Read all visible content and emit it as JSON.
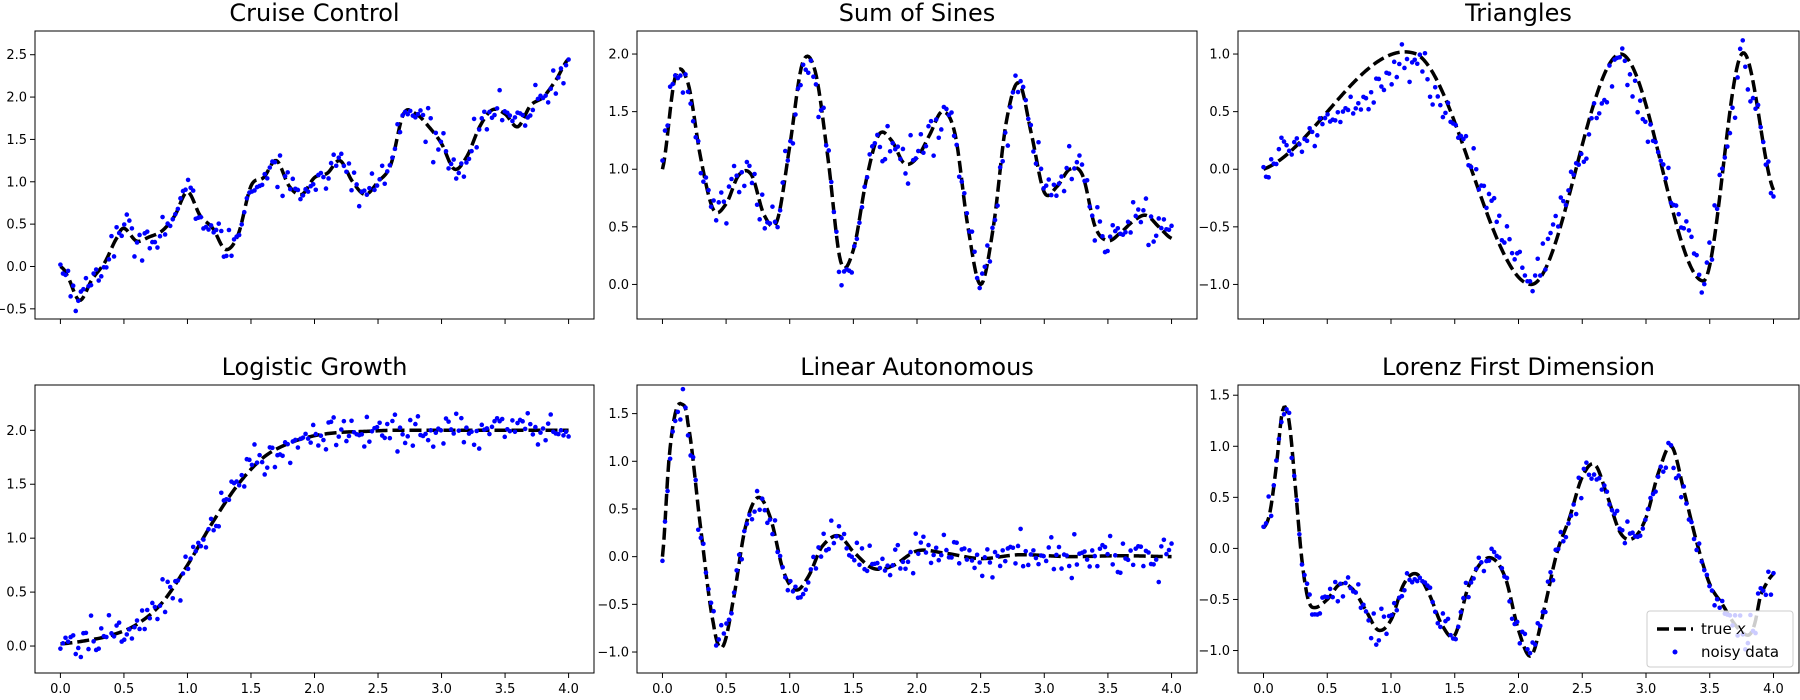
{
  "chart_data": [
    {
      "type": "line",
      "title": "Cruise Control",
      "xlim": [
        -0.2,
        4.2
      ],
      "ylim": [
        -0.62,
        2.78
      ],
      "xticks": [
        0.0,
        0.5,
        1.0,
        1.5,
        2.0,
        2.5,
        3.0,
        3.5,
        4.0
      ],
      "xtick_labels_visible": false,
      "yticks": [
        -0.5,
        0.0,
        0.5,
        1.0,
        1.5,
        2.0,
        2.5
      ],
      "ytick_labels": [
        "−0.5",
        "0.0",
        "0.5",
        "1.0",
        "1.5",
        "2.0",
        "2.5"
      ],
      "noise_sd": 0.1,
      "series": [
        {
          "name": "true x",
          "style": "dashed",
          "color": "#000000",
          "x": [
            0.0,
            0.05,
            0.15,
            0.25,
            0.35,
            0.45,
            0.5,
            0.6,
            0.7,
            0.8,
            0.9,
            1.0,
            1.1,
            1.2,
            1.3,
            1.4,
            1.5,
            1.6,
            1.7,
            1.8,
            1.9,
            2.0,
            2.1,
            2.2,
            2.3,
            2.4,
            2.5,
            2.6,
            2.7,
            2.8,
            2.9,
            3.0,
            3.1,
            3.2,
            3.3,
            3.4,
            3.5,
            3.6,
            3.7,
            3.8,
            3.9,
            4.0
          ],
          "y": [
            0.0,
            -0.1,
            -0.4,
            -0.15,
            0.05,
            0.35,
            0.45,
            0.3,
            0.35,
            0.42,
            0.6,
            0.88,
            0.6,
            0.45,
            0.2,
            0.38,
            0.95,
            1.05,
            1.25,
            0.95,
            0.85,
            1.05,
            1.1,
            1.25,
            1.0,
            0.85,
            1.0,
            1.2,
            1.8,
            1.8,
            1.65,
            1.45,
            1.15,
            1.3,
            1.65,
            1.85,
            1.8,
            1.65,
            1.9,
            2.0,
            2.2,
            2.45
          ]
        },
        {
          "name": "noisy data",
          "style": "markers",
          "color": "#0000ff",
          "n_points": 200
        }
      ]
    },
    {
      "type": "line",
      "title": "Sum of Sines",
      "xlim": [
        -0.2,
        4.2
      ],
      "ylim": [
        -0.3,
        2.2
      ],
      "xticks": [
        0.0,
        0.5,
        1.0,
        1.5,
        2.0,
        2.5,
        3.0,
        3.5,
        4.0
      ],
      "xtick_labels_visible": false,
      "yticks": [
        0.0,
        0.5,
        1.0,
        1.5,
        2.0
      ],
      "ytick_labels": [
        "0.0",
        "0.5",
        "1.0",
        "1.5",
        "2.0"
      ],
      "noise_sd": 0.1,
      "series": [
        {
          "name": "true x",
          "style": "dashed",
          "color": "#000000",
          "x": [
            0.0,
            0.1,
            0.2,
            0.3,
            0.4,
            0.5,
            0.6,
            0.7,
            0.8,
            0.9,
            1.0,
            1.1,
            1.2,
            1.3,
            1.4,
            1.5,
            1.6,
            1.7,
            1.8,
            1.9,
            2.0,
            2.1,
            2.2,
            2.3,
            2.4,
            2.5,
            2.6,
            2.7,
            2.8,
            2.9,
            3.0,
            3.1,
            3.2,
            3.3,
            3.4,
            3.5,
            3.6,
            3.7,
            3.8,
            3.9,
            4.0
          ],
          "y": [
            1.0,
            1.8,
            1.75,
            1.1,
            0.65,
            0.7,
            0.95,
            0.95,
            0.6,
            0.55,
            1.2,
            1.92,
            1.85,
            1.1,
            0.2,
            0.3,
            0.9,
            1.3,
            1.25,
            1.05,
            1.1,
            1.3,
            1.5,
            1.3,
            0.5,
            0.0,
            0.5,
            1.4,
            1.75,
            1.3,
            0.8,
            0.85,
            1.0,
            0.95,
            0.5,
            0.38,
            0.45,
            0.55,
            0.6,
            0.5,
            0.4
          ]
        },
        {
          "name": "noisy data",
          "style": "markers",
          "color": "#0000ff",
          "n_points": 200
        }
      ]
    },
    {
      "type": "line",
      "title": "Triangles",
      "xlim": [
        -0.2,
        4.2
      ],
      "ylim": [
        -1.3,
        1.2
      ],
      "xticks": [
        0.0,
        0.5,
        1.0,
        1.5,
        2.0,
        2.5,
        3.0,
        3.5,
        4.0
      ],
      "xtick_labels_visible": false,
      "yticks": [
        -1.0,
        -0.5,
        0.0,
        0.5,
        1.0
      ],
      "ytick_labels": [
        "−1.0",
        "−0.5",
        "0.0",
        "0.5",
        "1.0"
      ],
      "noise_sd": 0.08,
      "series": [
        {
          "name": "true x",
          "style": "dashed",
          "color": "#000000",
          "x": [
            0.0,
            1.2,
            2.1,
            2.8,
            3.45,
            3.75,
            4.0
          ],
          "y": [
            0.0,
            1.0,
            -1.0,
            1.0,
            -0.97,
            1.0,
            -0.18
          ]
        },
        {
          "name": "noisy data",
          "style": "markers",
          "color": "#0000ff",
          "n_points": 200
        }
      ]
    },
    {
      "type": "line",
      "title": "Logistic Growth",
      "xlim": [
        -0.2,
        4.2
      ],
      "ylim": [
        -0.25,
        2.42
      ],
      "xticks": [
        0.0,
        0.5,
        1.0,
        1.5,
        2.0,
        2.5,
        3.0,
        3.5,
        4.0
      ],
      "xtick_labels": [
        "0.0",
        "0.5",
        "1.0",
        "1.5",
        "2.0",
        "2.5",
        "3.0",
        "3.5",
        "4.0"
      ],
      "xtick_labels_visible": true,
      "yticks": [
        0.0,
        0.5,
        1.0,
        1.5,
        2.0
      ],
      "ytick_labels": [
        "0.0",
        "0.5",
        "1.0",
        "1.5",
        "2.0"
      ],
      "noise_sd": 0.09,
      "series": [
        {
          "name": "true x",
          "style": "dashed",
          "color": "#000000",
          "x": [
            0.0,
            0.2,
            0.4,
            0.6,
            0.8,
            1.0,
            1.2,
            1.4,
            1.6,
            1.8,
            2.0,
            2.2,
            2.4,
            2.6,
            2.8,
            3.0,
            3.5,
            4.0
          ],
          "y": [
            0.02,
            0.05,
            0.1,
            0.2,
            0.4,
            0.75,
            1.15,
            1.5,
            1.75,
            1.88,
            1.95,
            1.98,
            1.99,
            2.0,
            2.0,
            2.0,
            2.0,
            2.0
          ]
        },
        {
          "name": "noisy data",
          "style": "markers",
          "color": "#0000ff",
          "n_points": 200
        }
      ]
    },
    {
      "type": "line",
      "title": "Linear Autonomous",
      "xlim": [
        -0.2,
        4.2
      ],
      "ylim": [
        -1.22,
        1.8
      ],
      "xticks": [
        0.0,
        0.5,
        1.0,
        1.5,
        2.0,
        2.5,
        3.0,
        3.5,
        4.0
      ],
      "xtick_labels": [
        "0.0",
        "0.5",
        "1.0",
        "1.5",
        "2.0",
        "2.5",
        "3.0",
        "3.5",
        "4.0"
      ],
      "xtick_labels_visible": true,
      "yticks": [
        -1.0,
        -0.5,
        0.0,
        0.5,
        1.0,
        1.5
      ],
      "ytick_labels": [
        "−1.0",
        "−0.5",
        "0.0",
        "0.5",
        "1.0",
        "1.5"
      ],
      "noise_sd": 0.1,
      "series": [
        {
          "name": "true x",
          "style": "dashed",
          "color": "#000000",
          "x": [
            0.0,
            0.05,
            0.1,
            0.15,
            0.2,
            0.3,
            0.4,
            0.47,
            0.55,
            0.65,
            0.75,
            0.85,
            0.95,
            1.05,
            1.15,
            1.25,
            1.38,
            1.5,
            1.65,
            1.8,
            2.0,
            2.2,
            2.5,
            2.8,
            3.2,
            3.6,
            4.0
          ],
          "y": [
            0.0,
            1.0,
            1.5,
            1.6,
            1.4,
            0.3,
            -0.7,
            -0.95,
            -0.5,
            0.3,
            0.62,
            0.4,
            -0.15,
            -0.35,
            -0.2,
            0.1,
            0.22,
            0.05,
            -0.12,
            -0.1,
            0.06,
            0.04,
            -0.02,
            0.02,
            0.0,
            0.01,
            0.0
          ]
        },
        {
          "name": "noisy data",
          "style": "markers",
          "color": "#0000ff",
          "n_points": 200
        }
      ]
    },
    {
      "type": "line",
      "title": "Lorenz First Dimension",
      "xlim": [
        -0.2,
        4.2
      ],
      "ylim": [
        -1.22,
        1.6
      ],
      "xticks": [
        0.0,
        0.5,
        1.0,
        1.5,
        2.0,
        2.5,
        3.0,
        3.5,
        4.0
      ],
      "xtick_labels": [
        "0.0",
        "0.5",
        "1.0",
        "1.5",
        "2.0",
        "2.5",
        "3.0",
        "3.5",
        "4.0"
      ],
      "xtick_labels_visible": true,
      "yticks": [
        -1.0,
        -0.5,
        0.0,
        0.5,
        1.0,
        1.5
      ],
      "ytick_labels": [
        "−1.0",
        "−0.5",
        "0.0",
        "0.5",
        "1.0",
        "1.5"
      ],
      "noise_sd": 0.08,
      "series": [
        {
          "name": "true x",
          "style": "dashed",
          "color": "#000000",
          "x": [
            0.0,
            0.05,
            0.1,
            0.15,
            0.2,
            0.25,
            0.3,
            0.35,
            0.4,
            0.5,
            0.6,
            0.7,
            0.8,
            0.9,
            1.0,
            1.1,
            1.2,
            1.3,
            1.4,
            1.5,
            1.6,
            1.7,
            1.8,
            1.9,
            2.0,
            2.1,
            2.2,
            2.3,
            2.4,
            2.5,
            2.6,
            2.7,
            2.8,
            2.9,
            3.0,
            3.1,
            3.2,
            3.3,
            3.4,
            3.5,
            3.6,
            3.7,
            3.8,
            3.85,
            3.9,
            4.0
          ],
          "y": [
            0.2,
            0.35,
            0.8,
            1.35,
            1.25,
            0.6,
            -0.1,
            -0.5,
            -0.58,
            -0.5,
            -0.35,
            -0.4,
            -0.6,
            -0.8,
            -0.7,
            -0.35,
            -0.25,
            -0.45,
            -0.75,
            -0.85,
            -0.4,
            -0.15,
            -0.1,
            -0.3,
            -0.8,
            -1.05,
            -0.6,
            -0.05,
            0.3,
            0.7,
            0.82,
            0.5,
            0.15,
            0.1,
            0.3,
            0.75,
            1.0,
            0.55,
            0.05,
            -0.35,
            -0.55,
            -0.75,
            -0.85,
            -0.75,
            -0.45,
            -0.25
          ]
        },
        {
          "name": "noisy data",
          "style": "markers",
          "color": "#0000ff",
          "n_points": 200
        }
      ]
    }
  ],
  "legend": {
    "location": "lower-right of last panel",
    "entries": [
      {
        "label": "true ",
        "label_var": "x",
        "style": "dashed",
        "color": "#000000"
      },
      {
        "label": "noisy data",
        "style": "marker",
        "color": "#0000ff"
      }
    ]
  }
}
